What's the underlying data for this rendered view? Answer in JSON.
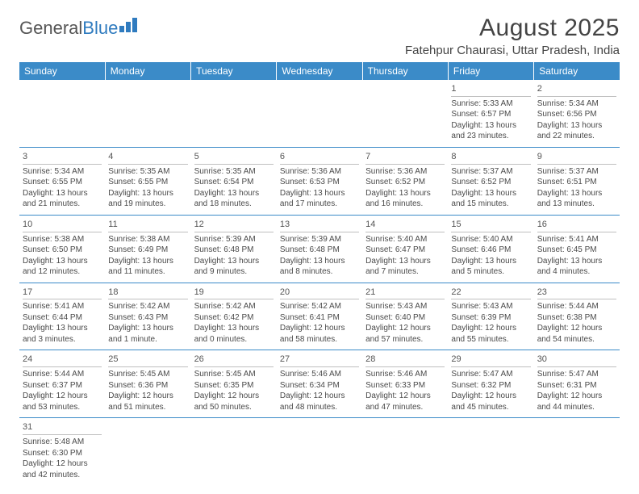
{
  "logo": {
    "text1": "General",
    "text2": "Blue"
  },
  "title": "August 2025",
  "location": "Fatehpur Chaurasi, Uttar Pradesh, India",
  "headers": [
    "Sunday",
    "Monday",
    "Tuesday",
    "Wednesday",
    "Thursday",
    "Friday",
    "Saturday"
  ],
  "colors": {
    "header_bg": "#3b8bc8",
    "header_text": "#ffffff",
    "row_border": "#3b8bc8",
    "daynum_border": "#bfbfbf",
    "text": "#4a4a4a"
  },
  "weeks": [
    [
      null,
      null,
      null,
      null,
      null,
      {
        "day": "1",
        "sunrise": "Sunrise: 5:33 AM",
        "sunset": "Sunset: 6:57 PM",
        "daylight1": "Daylight: 13 hours",
        "daylight2": "and 23 minutes."
      },
      {
        "day": "2",
        "sunrise": "Sunrise: 5:34 AM",
        "sunset": "Sunset: 6:56 PM",
        "daylight1": "Daylight: 13 hours",
        "daylight2": "and 22 minutes."
      }
    ],
    [
      {
        "day": "3",
        "sunrise": "Sunrise: 5:34 AM",
        "sunset": "Sunset: 6:55 PM",
        "daylight1": "Daylight: 13 hours",
        "daylight2": "and 21 minutes."
      },
      {
        "day": "4",
        "sunrise": "Sunrise: 5:35 AM",
        "sunset": "Sunset: 6:55 PM",
        "daylight1": "Daylight: 13 hours",
        "daylight2": "and 19 minutes."
      },
      {
        "day": "5",
        "sunrise": "Sunrise: 5:35 AM",
        "sunset": "Sunset: 6:54 PM",
        "daylight1": "Daylight: 13 hours",
        "daylight2": "and 18 minutes."
      },
      {
        "day": "6",
        "sunrise": "Sunrise: 5:36 AM",
        "sunset": "Sunset: 6:53 PM",
        "daylight1": "Daylight: 13 hours",
        "daylight2": "and 17 minutes."
      },
      {
        "day": "7",
        "sunrise": "Sunrise: 5:36 AM",
        "sunset": "Sunset: 6:52 PM",
        "daylight1": "Daylight: 13 hours",
        "daylight2": "and 16 minutes."
      },
      {
        "day": "8",
        "sunrise": "Sunrise: 5:37 AM",
        "sunset": "Sunset: 6:52 PM",
        "daylight1": "Daylight: 13 hours",
        "daylight2": "and 15 minutes."
      },
      {
        "day": "9",
        "sunrise": "Sunrise: 5:37 AM",
        "sunset": "Sunset: 6:51 PM",
        "daylight1": "Daylight: 13 hours",
        "daylight2": "and 13 minutes."
      }
    ],
    [
      {
        "day": "10",
        "sunrise": "Sunrise: 5:38 AM",
        "sunset": "Sunset: 6:50 PM",
        "daylight1": "Daylight: 13 hours",
        "daylight2": "and 12 minutes."
      },
      {
        "day": "11",
        "sunrise": "Sunrise: 5:38 AM",
        "sunset": "Sunset: 6:49 PM",
        "daylight1": "Daylight: 13 hours",
        "daylight2": "and 11 minutes."
      },
      {
        "day": "12",
        "sunrise": "Sunrise: 5:39 AM",
        "sunset": "Sunset: 6:48 PM",
        "daylight1": "Daylight: 13 hours",
        "daylight2": "and 9 minutes."
      },
      {
        "day": "13",
        "sunrise": "Sunrise: 5:39 AM",
        "sunset": "Sunset: 6:48 PM",
        "daylight1": "Daylight: 13 hours",
        "daylight2": "and 8 minutes."
      },
      {
        "day": "14",
        "sunrise": "Sunrise: 5:40 AM",
        "sunset": "Sunset: 6:47 PM",
        "daylight1": "Daylight: 13 hours",
        "daylight2": "and 7 minutes."
      },
      {
        "day": "15",
        "sunrise": "Sunrise: 5:40 AM",
        "sunset": "Sunset: 6:46 PM",
        "daylight1": "Daylight: 13 hours",
        "daylight2": "and 5 minutes."
      },
      {
        "day": "16",
        "sunrise": "Sunrise: 5:41 AM",
        "sunset": "Sunset: 6:45 PM",
        "daylight1": "Daylight: 13 hours",
        "daylight2": "and 4 minutes."
      }
    ],
    [
      {
        "day": "17",
        "sunrise": "Sunrise: 5:41 AM",
        "sunset": "Sunset: 6:44 PM",
        "daylight1": "Daylight: 13 hours",
        "daylight2": "and 3 minutes."
      },
      {
        "day": "18",
        "sunrise": "Sunrise: 5:42 AM",
        "sunset": "Sunset: 6:43 PM",
        "daylight1": "Daylight: 13 hours",
        "daylight2": "and 1 minute."
      },
      {
        "day": "19",
        "sunrise": "Sunrise: 5:42 AM",
        "sunset": "Sunset: 6:42 PM",
        "daylight1": "Daylight: 13 hours",
        "daylight2": "and 0 minutes."
      },
      {
        "day": "20",
        "sunrise": "Sunrise: 5:42 AM",
        "sunset": "Sunset: 6:41 PM",
        "daylight1": "Daylight: 12 hours",
        "daylight2": "and 58 minutes."
      },
      {
        "day": "21",
        "sunrise": "Sunrise: 5:43 AM",
        "sunset": "Sunset: 6:40 PM",
        "daylight1": "Daylight: 12 hours",
        "daylight2": "and 57 minutes."
      },
      {
        "day": "22",
        "sunrise": "Sunrise: 5:43 AM",
        "sunset": "Sunset: 6:39 PM",
        "daylight1": "Daylight: 12 hours",
        "daylight2": "and 55 minutes."
      },
      {
        "day": "23",
        "sunrise": "Sunrise: 5:44 AM",
        "sunset": "Sunset: 6:38 PM",
        "daylight1": "Daylight: 12 hours",
        "daylight2": "and 54 minutes."
      }
    ],
    [
      {
        "day": "24",
        "sunrise": "Sunrise: 5:44 AM",
        "sunset": "Sunset: 6:37 PM",
        "daylight1": "Daylight: 12 hours",
        "daylight2": "and 53 minutes."
      },
      {
        "day": "25",
        "sunrise": "Sunrise: 5:45 AM",
        "sunset": "Sunset: 6:36 PM",
        "daylight1": "Daylight: 12 hours",
        "daylight2": "and 51 minutes."
      },
      {
        "day": "26",
        "sunrise": "Sunrise: 5:45 AM",
        "sunset": "Sunset: 6:35 PM",
        "daylight1": "Daylight: 12 hours",
        "daylight2": "and 50 minutes."
      },
      {
        "day": "27",
        "sunrise": "Sunrise: 5:46 AM",
        "sunset": "Sunset: 6:34 PM",
        "daylight1": "Daylight: 12 hours",
        "daylight2": "and 48 minutes."
      },
      {
        "day": "28",
        "sunrise": "Sunrise: 5:46 AM",
        "sunset": "Sunset: 6:33 PM",
        "daylight1": "Daylight: 12 hours",
        "daylight2": "and 47 minutes."
      },
      {
        "day": "29",
        "sunrise": "Sunrise: 5:47 AM",
        "sunset": "Sunset: 6:32 PM",
        "daylight1": "Daylight: 12 hours",
        "daylight2": "and 45 minutes."
      },
      {
        "day": "30",
        "sunrise": "Sunrise: 5:47 AM",
        "sunset": "Sunset: 6:31 PM",
        "daylight1": "Daylight: 12 hours",
        "daylight2": "and 44 minutes."
      }
    ],
    [
      {
        "day": "31",
        "sunrise": "Sunrise: 5:48 AM",
        "sunset": "Sunset: 6:30 PM",
        "daylight1": "Daylight: 12 hours",
        "daylight2": "and 42 minutes."
      },
      null,
      null,
      null,
      null,
      null,
      null
    ]
  ]
}
